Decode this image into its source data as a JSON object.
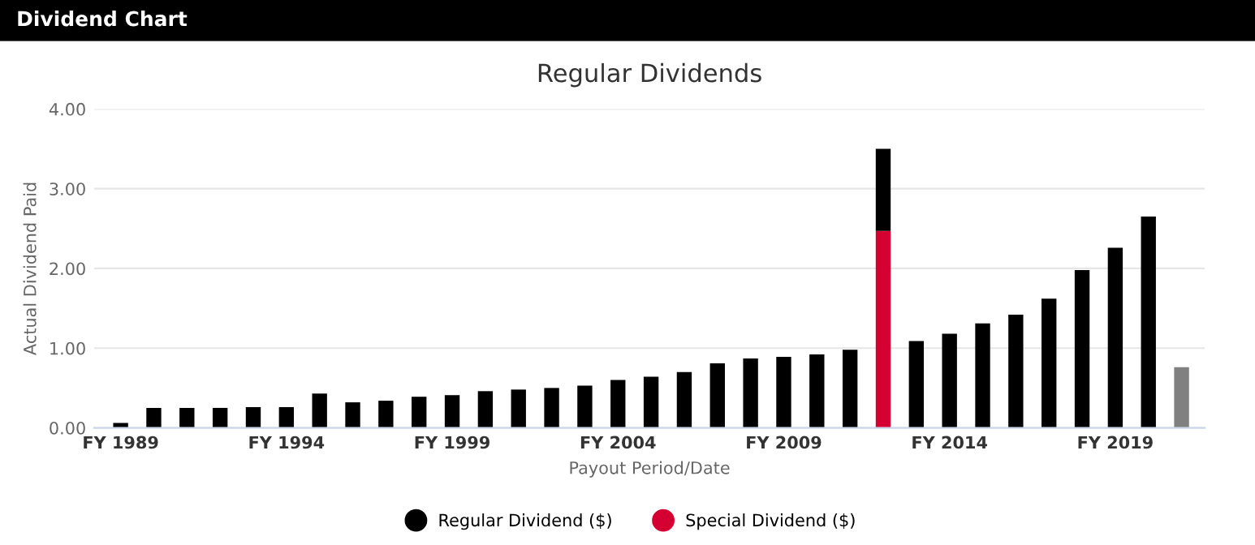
{
  "chart_data": {
    "type": "bar",
    "title": "Regular Dividends",
    "xlabel": "Payout Period/Date",
    "ylabel": "Actual Dividend Paid",
    "annotations": [
      "Dividend Chart"
    ],
    "categories": [
      "FY 1989",
      null,
      null,
      null,
      null,
      "FY 1994",
      null,
      null,
      null,
      null,
      "FY 1999",
      null,
      null,
      null,
      null,
      "FY 2004",
      null,
      null,
      null,
      null,
      "FY 2009",
      null,
      null,
      null,
      null,
      "FY 2014",
      null,
      null,
      null,
      null,
      "FY 2019",
      null,
      null
    ],
    "stacked": true,
    "series": [
      {
        "name": "Special Dividend ($)",
        "color": "#d50032",
        "values": [
          null,
          null,
          null,
          null,
          null,
          null,
          null,
          null,
          null,
          null,
          null,
          null,
          null,
          null,
          null,
          null,
          null,
          null,
          null,
          null,
          null,
          null,
          null,
          2.47,
          null,
          null,
          null,
          null,
          null,
          null,
          null,
          null,
          null
        ]
      },
      {
        "name": "Regular Dividend ($)",
        "color": "#000000",
        "colors": [
          "#000000",
          "#000000",
          "#000000",
          "#000000",
          "#000000",
          "#000000",
          "#000000",
          "#000000",
          "#000000",
          "#000000",
          "#000000",
          "#000000",
          "#000000",
          "#000000",
          "#000000",
          "#000000",
          "#000000",
          "#000000",
          "#000000",
          "#000000",
          "#000000",
          "#000000",
          "#000000",
          "#000000",
          "#000000",
          "#000000",
          "#000000",
          "#000000",
          "#000000",
          "#000000",
          "#000000",
          "#000000",
          "#808080"
        ],
        "values": [
          0.06,
          0.25,
          0.25,
          0.25,
          0.26,
          0.26,
          0.43,
          0.32,
          0.34,
          0.39,
          0.41,
          0.46,
          0.48,
          0.5,
          0.53,
          0.6,
          0.64,
          0.7,
          0.81,
          0.87,
          0.89,
          0.92,
          0.98,
          1.03,
          1.09,
          1.18,
          1.31,
          1.42,
          1.62,
          1.98,
          2.26,
          2.65,
          0.76
        ]
      }
    ],
    "ylim": [
      0,
      4
    ],
    "yticks": [
      {
        "value": 0,
        "label": "0.00"
      },
      {
        "value": 1,
        "label": "1.00"
      },
      {
        "value": 2,
        "label": "2.00"
      },
      {
        "value": 3,
        "label": "3.00"
      },
      {
        "value": 4,
        "label": "4.00"
      }
    ],
    "grid": "y",
    "legend": "bottom"
  }
}
